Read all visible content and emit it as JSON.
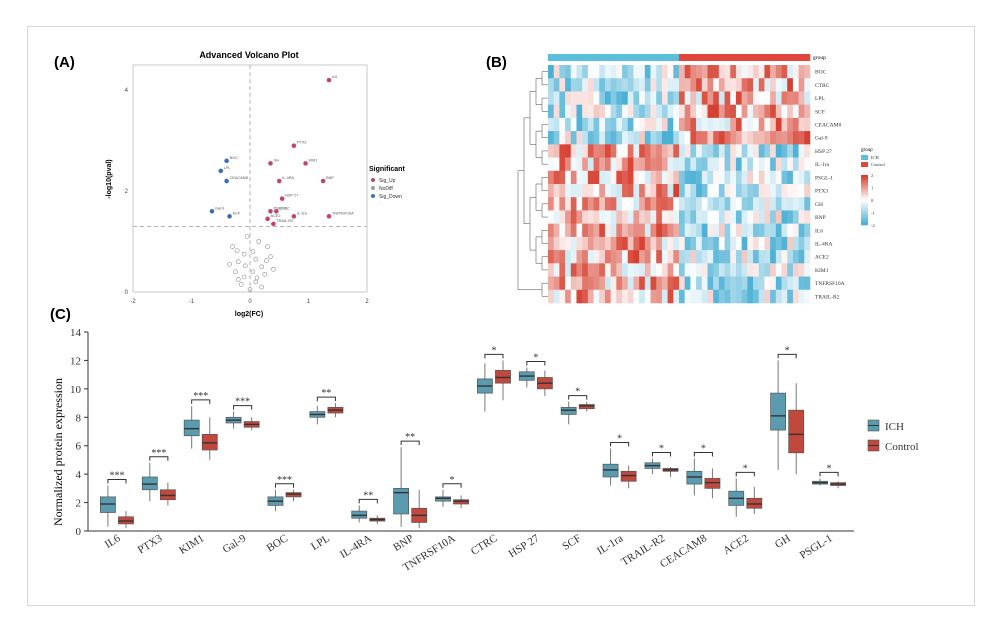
{
  "panel_labels": {
    "a": "(A)",
    "b": "(B)",
    "c": "(C)"
  },
  "chart_data": [
    {
      "id": "volcano",
      "type": "scatter",
      "title": "Advanced Volcano Plot",
      "xlabel": "log2(FC)",
      "ylabel": "-log10(pval)",
      "xlim": [
        -2,
        2
      ],
      "ylim": [
        0,
        4.5
      ],
      "x_ticks": [
        "-2",
        "-1",
        "0",
        "1",
        "2"
      ],
      "y_ticks": [
        "0",
        "2",
        "4"
      ],
      "threshold_lines": {
        "x": 0,
        "y": 1.3
      },
      "legend_title": "Significant",
      "legend": [
        {
          "name": "Sig_Up",
          "color": "#c2466a"
        },
        {
          "name": "NoDiff",
          "color": "#9b9b9b"
        },
        {
          "name": "Sig_Down",
          "color": "#3d6fb6"
        }
      ],
      "labeled_points": [
        {
          "label": "IL6",
          "x": 1.35,
          "y": 4.2,
          "group": "up"
        },
        {
          "label": "PTX3",
          "x": 0.75,
          "y": 2.9,
          "group": "up"
        },
        {
          "label": "KIM1",
          "x": 0.95,
          "y": 2.55,
          "group": "up"
        },
        {
          "label": "GH",
          "x": 0.35,
          "y": 2.55,
          "group": "up"
        },
        {
          "label": "IL-4RA",
          "x": 0.5,
          "y": 2.2,
          "group": "up"
        },
        {
          "label": "BNP",
          "x": 1.25,
          "y": 2.2,
          "group": "up"
        },
        {
          "label": "HSP 27",
          "x": 0.55,
          "y": 1.85,
          "group": "up"
        },
        {
          "label": "CTRC",
          "x": 0.45,
          "y": 1.6,
          "group": "up"
        },
        {
          "label": "IL-1ra",
          "x": 0.75,
          "y": 1.5,
          "group": "up"
        },
        {
          "label": "TNFRSF10A",
          "x": 1.35,
          "y": 1.5,
          "group": "up"
        },
        {
          "label": "ACE2",
          "x": 0.3,
          "y": 1.45,
          "group": "up"
        },
        {
          "label": "TRAIL-R2",
          "x": 0.4,
          "y": 1.35,
          "group": "up"
        },
        {
          "label": "PSGL-1",
          "x": 0.35,
          "y": 1.6,
          "group": "up"
        },
        {
          "label": "LPL",
          "x": -0.5,
          "y": 2.4,
          "group": "down"
        },
        {
          "label": "BOC",
          "x": -0.4,
          "y": 2.6,
          "group": "down"
        },
        {
          "label": "CEACAM8",
          "x": -0.4,
          "y": 2.2,
          "group": "down"
        },
        {
          "label": "Gal-9",
          "x": -0.65,
          "y": 1.6,
          "group": "down"
        },
        {
          "label": "SCF",
          "x": -0.35,
          "y": 1.5,
          "group": "down"
        }
      ],
      "nodiff_points": [
        [
          0.1,
          0.2
        ],
        [
          -0.1,
          0.3
        ],
        [
          0.2,
          0.5
        ],
        [
          -0.2,
          0.6
        ],
        [
          0.05,
          0.8
        ],
        [
          0.3,
          0.9
        ],
        [
          -0.25,
          0.4
        ],
        [
          0.15,
          1.0
        ],
        [
          -0.05,
          1.1
        ],
        [
          0.25,
          0.35
        ],
        [
          -0.15,
          0.15
        ],
        [
          0.0,
          0.05
        ],
        [
          0.35,
          0.7
        ],
        [
          -0.3,
          0.9
        ],
        [
          0.1,
          0.65
        ],
        [
          -0.1,
          0.75
        ],
        [
          0.2,
          0.1
        ],
        [
          -0.2,
          0.25
        ],
        [
          0.4,
          0.45
        ],
        [
          -0.35,
          0.55
        ],
        [
          0.05,
          0.4
        ],
        [
          0.12,
          0.28
        ],
        [
          -0.08,
          0.52
        ],
        [
          0.28,
          0.62
        ],
        [
          -0.22,
          0.82
        ]
      ]
    },
    {
      "id": "heatmap",
      "type": "heatmap",
      "row_labels": [
        "BOC",
        "CTRC",
        "LPL",
        "SCF",
        "CEACAM8",
        "Gal-9",
        "HSP 27",
        "IL-1ra",
        "PSGL-1",
        "PTX3",
        "GH",
        "BNP",
        "IL6",
        "IL-4RA",
        "ACE2",
        "KIM1",
        "TNFRSF10A",
        "TRAIL-R2"
      ],
      "group_label": "group",
      "group_legend_title": "group",
      "groups": [
        {
          "name": "ICH",
          "color": "#5bbfda"
        },
        {
          "name": "Control",
          "color": "#e0463a"
        }
      ],
      "n_ich": 23,
      "n_control": 23,
      "scale_ticks": [
        "2",
        "1",
        "0",
        "-1",
        "-2"
      ],
      "seed": 7
    },
    {
      "id": "boxplot",
      "type": "box",
      "ylabel": "Normalized protein expression",
      "ylim": [
        0,
        14
      ],
      "y_ticks": [
        0,
        2,
        4,
        6,
        8,
        10,
        12,
        14
      ],
      "legend": [
        {
          "name": "ICH",
          "color": "#5a9bb0"
        },
        {
          "name": "Control",
          "color": "#c0483d"
        }
      ],
      "groups": [
        {
          "protein": "IL6",
          "sig": "***",
          "ich": [
            0.3,
            1.3,
            1.9,
            2.4,
            3.2
          ],
          "control": [
            0.2,
            0.5,
            0.7,
            1.0,
            1.4
          ]
        },
        {
          "protein": "PTX3",
          "sig": "***",
          "ich": [
            2.1,
            2.9,
            3.3,
            3.8,
            4.8
          ],
          "control": [
            1.8,
            2.2,
            2.5,
            2.9,
            3.4
          ]
        },
        {
          "protein": "KIM1",
          "sig": "***",
          "ich": [
            5.8,
            6.7,
            7.2,
            7.8,
            8.8
          ],
          "control": [
            5.0,
            5.7,
            6.2,
            6.8,
            8.0
          ]
        },
        {
          "protein": "Gal-9",
          "sig": "***",
          "ich": [
            7.2,
            7.6,
            7.8,
            8.0,
            8.4
          ],
          "control": [
            7.1,
            7.3,
            7.5,
            7.7,
            8.0
          ]
        },
        {
          "protein": "BOC",
          "sig": "***",
          "ich": [
            1.4,
            1.8,
            2.1,
            2.4,
            2.9
          ],
          "control": [
            2.1,
            2.4,
            2.6,
            2.7,
            2.9
          ]
        },
        {
          "protein": "LPL",
          "sig": "**",
          "ich": [
            7.5,
            8.0,
            8.2,
            8.4,
            8.8
          ],
          "control": [
            8.0,
            8.3,
            8.5,
            8.7,
            9.0
          ]
        },
        {
          "protein": "IL-4RA",
          "sig": "**",
          "ich": [
            0.6,
            0.9,
            1.1,
            1.4,
            1.8
          ],
          "control": [
            0.5,
            0.7,
            0.8,
            0.9,
            1.1
          ]
        },
        {
          "protein": "BNP",
          "sig": "**",
          "ich": [
            0.3,
            1.2,
            2.7,
            3.0,
            5.9
          ],
          "control": [
            0.2,
            0.6,
            1.1,
            1.6,
            2.9
          ]
        },
        {
          "protein": "TNFRSF10A",
          "sig": "*",
          "ich": [
            1.7,
            2.1,
            2.3,
            2.4,
            2.9
          ],
          "control": [
            1.6,
            1.9,
            2.1,
            2.2,
            2.5
          ]
        },
        {
          "protein": "CTRC",
          "sig": "*",
          "ich": [
            8.4,
            9.7,
            10.2,
            10.7,
            11.8
          ],
          "control": [
            9.2,
            10.4,
            10.8,
            11.3,
            12.0
          ]
        },
        {
          "protein": "HSP 27",
          "sig": "*",
          "ich": [
            10.1,
            10.6,
            10.9,
            11.2,
            11.5
          ],
          "control": [
            9.5,
            10.0,
            10.4,
            10.8,
            11.3
          ]
        },
        {
          "protein": "SCF",
          "sig": "*",
          "ich": [
            7.5,
            8.2,
            8.5,
            8.7,
            9.1
          ],
          "control": [
            8.4,
            8.6,
            8.8,
            8.9,
            9.1
          ]
        },
        {
          "protein": "IL-1ra",
          "sig": "*",
          "ich": [
            3.2,
            3.8,
            4.3,
            4.7,
            5.8
          ],
          "control": [
            3.0,
            3.5,
            3.9,
            4.2,
            4.6
          ]
        },
        {
          "protein": "TRAIL-R2",
          "sig": "*",
          "ich": [
            4.0,
            4.4,
            4.6,
            4.8,
            5.1
          ],
          "control": [
            3.8,
            4.2,
            4.3,
            4.4,
            4.5
          ]
        },
        {
          "protein": "CEACAM8",
          "sig": "*",
          "ich": [
            2.5,
            3.3,
            3.8,
            4.2,
            5.1
          ],
          "control": [
            2.3,
            3.0,
            3.4,
            3.7,
            4.4
          ]
        },
        {
          "protein": "ACE2",
          "sig": "*",
          "ich": [
            1.0,
            1.8,
            2.3,
            2.8,
            3.7
          ],
          "control": [
            1.2,
            1.6,
            1.9,
            2.3,
            3.1
          ]
        },
        {
          "protein": "GH",
          "sig": "*",
          "ich": [
            4.3,
            7.1,
            8.1,
            9.7,
            12.0
          ],
          "control": [
            4.0,
            5.5,
            6.8,
            8.5,
            10.4
          ]
        },
        {
          "protein": "PSGL-1",
          "sig": "*",
          "ich": [
            3.2,
            3.3,
            3.4,
            3.5,
            3.7
          ],
          "control": [
            3.0,
            3.2,
            3.3,
            3.4,
            3.5
          ]
        }
      ]
    }
  ]
}
